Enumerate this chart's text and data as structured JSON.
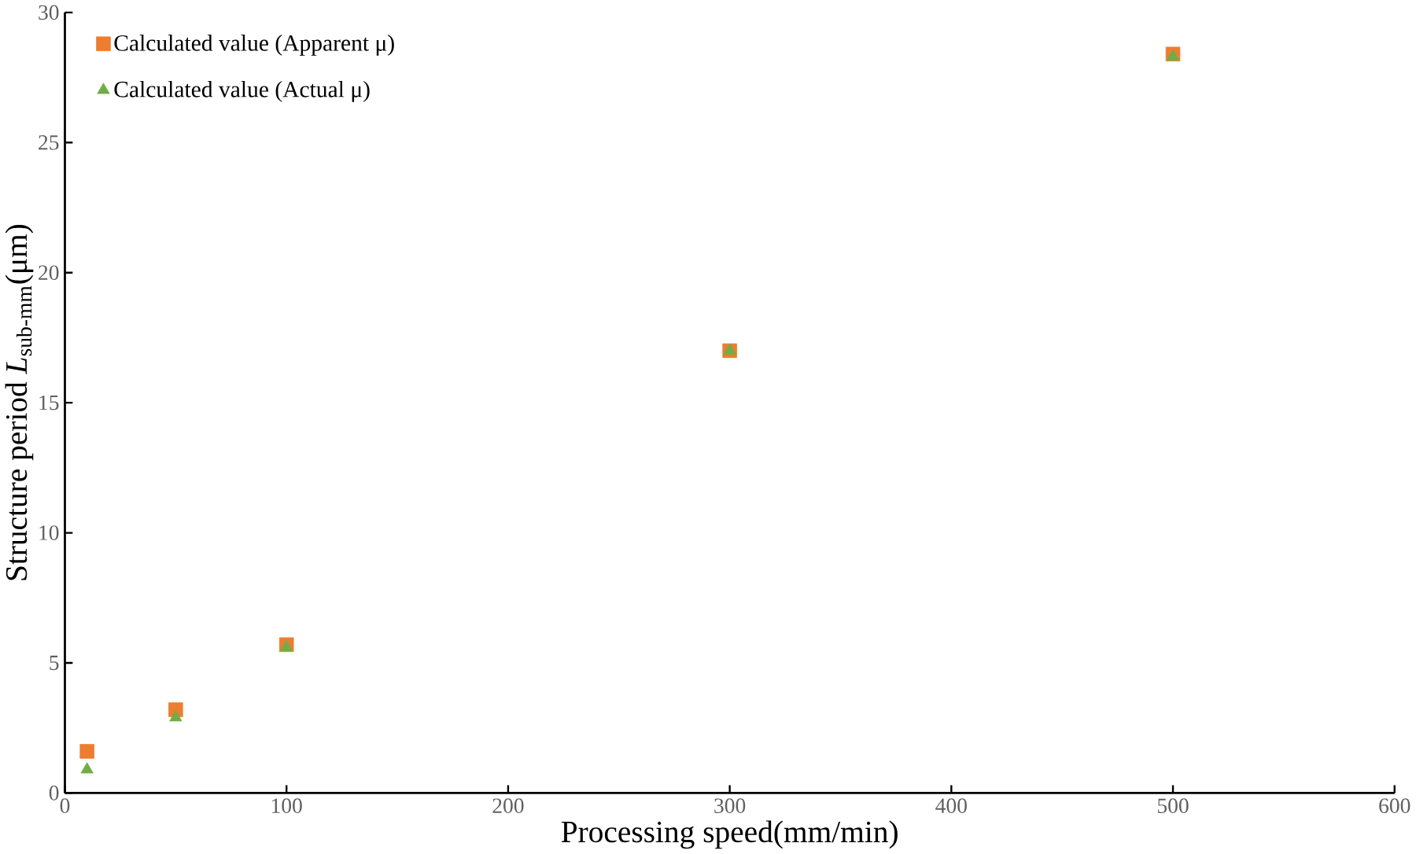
{
  "chart_data": {
    "type": "scatter",
    "xlabel": "Processing speed(mm/min)",
    "ylabel": "Structure period *L*$_{sub-mm}$(μm)",
    "xlim": [
      0,
      600
    ],
    "xticks": [
      0,
      100,
      200,
      300,
      400,
      500,
      600
    ],
    "ylim": [
      0,
      30
    ],
    "yticks": [
      0,
      5,
      10,
      15,
      20,
      25,
      30
    ],
    "grid": false,
    "legend": "top left",
    "series": [
      {
        "name": "Calculated value (Apparent μ)",
        "color": "#ed7d31",
        "marker": "square",
        "x": [
          10,
          50,
          100,
          300,
          500
        ],
        "values": [
          1.6,
          3.2,
          5.7,
          17.0,
          28.4
        ]
      },
      {
        "name": "Calculated value (Actual μ)",
        "color": "#70ad47",
        "marker": "triangle",
        "x": [
          10,
          50,
          100,
          300,
          500
        ],
        "values": [
          0.9,
          2.9,
          5.6,
          17.0,
          28.3
        ]
      }
    ]
  }
}
